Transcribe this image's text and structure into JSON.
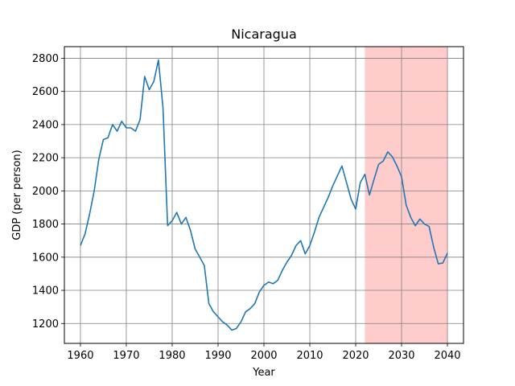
{
  "chart_data": {
    "type": "line",
    "title": "Nicaragua",
    "xlabel": "Year",
    "ylabel": "GDP (per person)",
    "xlim": [
      1956.5,
      2043.5
    ],
    "ylim": [
      1080,
      2870
    ],
    "xticks": [
      1960,
      1970,
      1980,
      1990,
      2000,
      2010,
      2020,
      2030,
      2040
    ],
    "yticks": [
      1200,
      1400,
      1600,
      1800,
      2000,
      2200,
      2400,
      2600,
      2800
    ],
    "grid": true,
    "line_color": "#1f77b4",
    "shaded_region": {
      "x_start": 2022,
      "x_end": 2040,
      "color": "#ffcccc"
    },
    "series": [
      {
        "x": [
          1960,
          1961,
          1962,
          1963,
          1964,
          1965,
          1966,
          1967,
          1968,
          1969,
          1970,
          1971,
          1972,
          1973,
          1974,
          1975,
          1976,
          1977,
          1978,
          1979,
          1980,
          1981,
          1982,
          1983,
          1984,
          1985,
          1986,
          1987,
          1988,
          1989,
          1990,
          1991,
          1992,
          1993,
          1994,
          1995,
          1996,
          1997,
          1998,
          1999,
          2000,
          2001,
          2002,
          2003,
          2004,
          2005,
          2006,
          2007,
          2008,
          2009,
          2010,
          2011,
          2012,
          2013,
          2014,
          2015,
          2016,
          2017,
          2018,
          2019,
          2020,
          2021,
          2022,
          2023,
          2024,
          2025,
          2026,
          2027,
          2028,
          2029,
          2030,
          2031,
          2032,
          2033,
          2034,
          2035,
          2036,
          2037,
          2038,
          2039,
          2040
        ],
        "values": [
          1670,
          1740,
          1860,
          2000,
          2190,
          2310,
          2320,
          2400,
          2360,
          2420,
          2380,
          2380,
          2360,
          2430,
          2690,
          2610,
          2660,
          2790,
          2500,
          1790,
          1820,
          1870,
          1800,
          1840,
          1760,
          1650,
          1600,
          1550,
          1320,
          1270,
          1240,
          1210,
          1190,
          1160,
          1170,
          1210,
          1270,
          1290,
          1320,
          1390,
          1430,
          1450,
          1440,
          1460,
          1520,
          1570,
          1610,
          1670,
          1700,
          1620,
          1670,
          1750,
          1840,
          1900,
          1960,
          2030,
          2090,
          2150,
          2050,
          1950,
          1890,
          2050,
          2100,
          1975,
          2070,
          2160,
          2180,
          2235,
          2205,
          2150,
          2085,
          1915,
          1840,
          1790,
          1830,
          1800,
          1785,
          1660,
          1560,
          1565,
          1625
        ]
      }
    ]
  }
}
